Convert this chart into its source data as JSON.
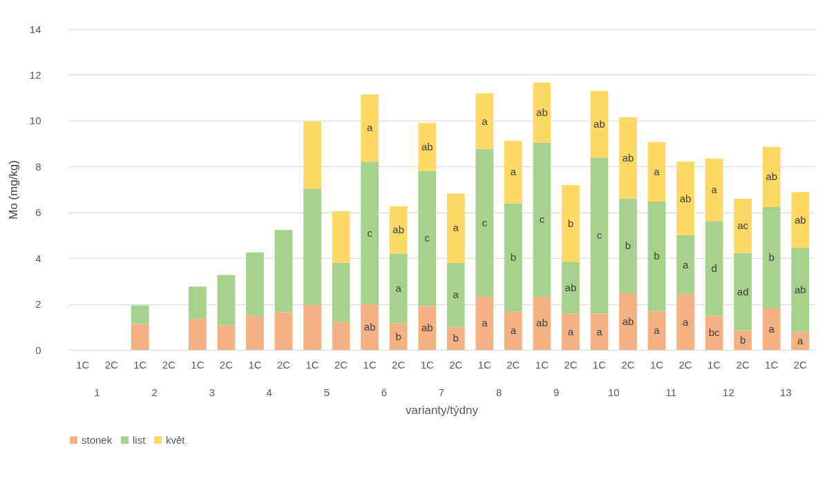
{
  "chart_data": {
    "type": "bar",
    "stacked": true,
    "ylabel": "Mo (mg/kg)",
    "xlabel": "varianty/týdny",
    "categories": [
      "1C",
      "2C",
      "1C",
      "2C",
      "1C",
      "2C",
      "1C",
      "2C",
      "1C",
      "2C",
      "1C",
      "2C",
      "1C",
      "2C",
      "1C",
      "2C",
      "1C",
      "2C",
      "1C",
      "2C",
      "1C",
      "2C",
      "1C",
      "2C",
      "1C",
      "2C"
    ],
    "annotations": [
      "1",
      "2",
      "3",
      "4",
      "5",
      "6",
      "7",
      "8",
      "9",
      "10",
      "11",
      "12",
      "13"
    ],
    "series": [
      {
        "name": "stonek",
        "color": "#f4b183",
        "values": [
          null,
          null,
          1.14,
          null,
          1.36,
          1.06,
          1.48,
          1.64,
          1.96,
          1.23,
          1.99,
          1.15,
          1.92,
          1.0,
          2.32,
          1.66,
          2.32,
          1.59,
          1.59,
          2.47,
          1.69,
          2.43,
          1.49,
          0.85,
          1.81,
          0.8
        ],
        "value_labels": [
          null,
          null,
          null,
          null,
          null,
          null,
          null,
          null,
          null,
          null,
          "ab",
          "b",
          "ab",
          "b",
          "a",
          "a",
          "ab",
          "a",
          "a",
          "ab",
          "a",
          "a",
          "bc",
          "b",
          "a",
          "a"
        ]
      },
      {
        "name": "list",
        "color": "#a9d18e",
        "values": [
          null,
          null,
          0.8,
          null,
          1.4,
          2.21,
          2.77,
          3.59,
          5.08,
          2.57,
          6.22,
          3.05,
          5.89,
          2.8,
          6.45,
          4.73,
          6.72,
          2.26,
          6.8,
          4.14,
          4.78,
          2.57,
          4.13,
          3.38,
          4.42,
          3.66
        ],
        "value_labels": [
          null,
          null,
          null,
          null,
          null,
          null,
          null,
          null,
          null,
          null,
          "c",
          "a",
          "c",
          "a",
          "c",
          "b",
          "c",
          "ab",
          "c",
          "b",
          "b",
          "a",
          "d",
          "ad",
          "b",
          "ab"
        ]
      },
      {
        "name": "květ",
        "color": "#ffd966",
        "values": [
          null,
          null,
          null,
          null,
          null,
          null,
          null,
          null,
          2.92,
          2.25,
          2.94,
          2.06,
          2.09,
          3.03,
          2.42,
          2.73,
          2.63,
          3.34,
          2.91,
          3.54,
          2.6,
          3.21,
          2.73,
          2.36,
          2.63,
          2.43
        ],
        "value_labels": [
          null,
          null,
          null,
          null,
          null,
          null,
          null,
          null,
          null,
          null,
          "a",
          "ab",
          "ab",
          "a",
          "a",
          "a",
          "ab",
          "b",
          "ab",
          "ab",
          "a",
          "ab",
          "a",
          "ac",
          "ab",
          "ab"
        ]
      }
    ],
    "ylim": [
      0,
      14
    ],
    "yticks": [
      0,
      2,
      4,
      6,
      8,
      10,
      12,
      14
    ],
    "grid": "y",
    "legend": "bottom"
  }
}
